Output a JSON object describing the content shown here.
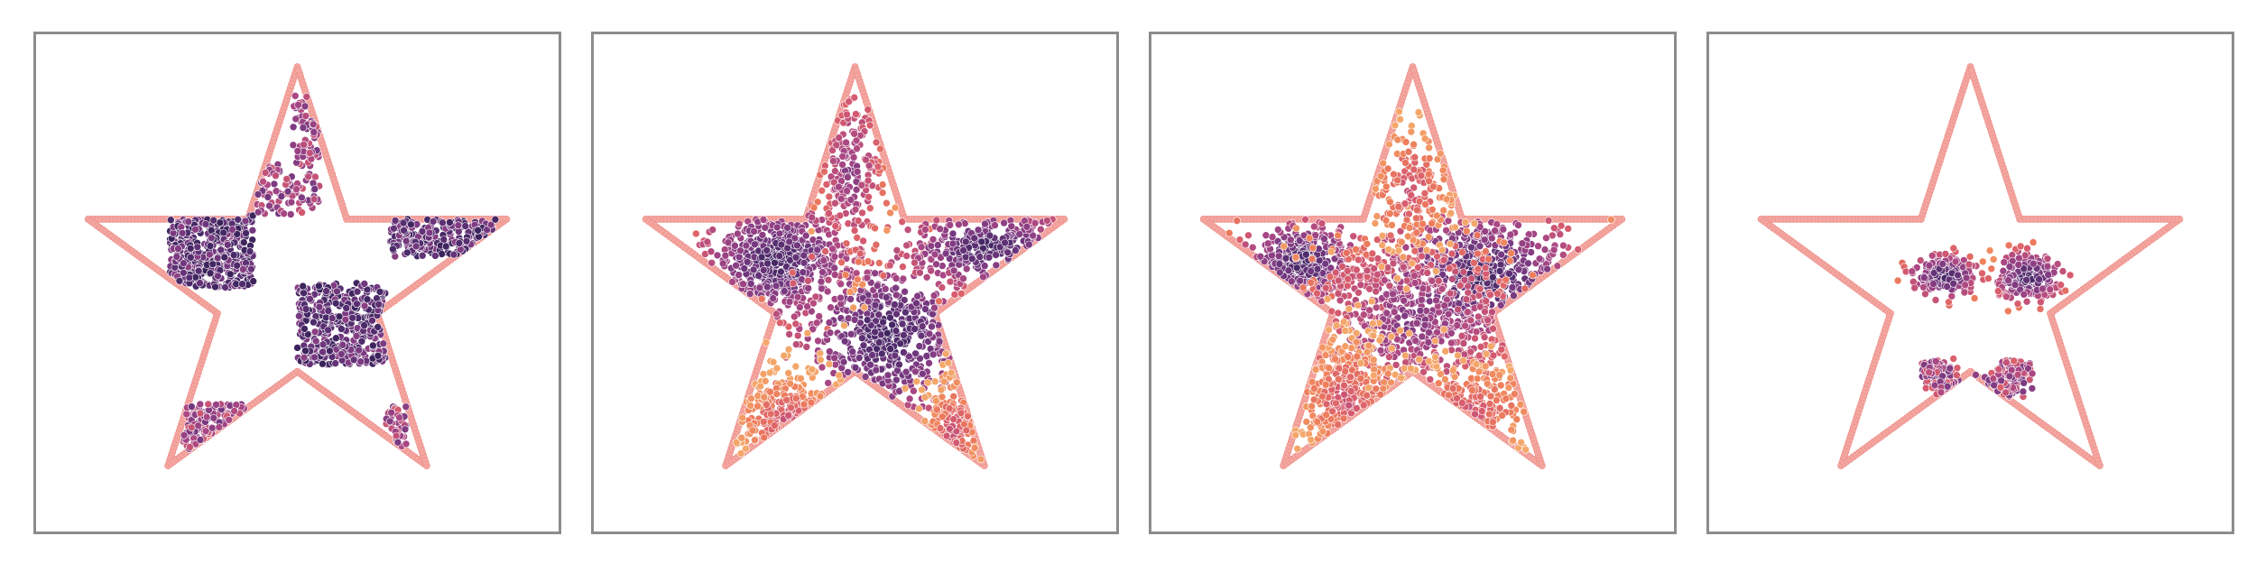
{
  "figure": {
    "boundary_color": "#f4a6a0",
    "colormap": [
      "#311f53",
      "#4d2b6b",
      "#7a3a82",
      "#a94784",
      "#d65b6f",
      "#ee7d5c",
      "#f4a76a"
    ]
  },
  "chart_data": [
    {
      "type": "scatter",
      "title": "",
      "xlim": [
        -1.2,
        1.2
      ],
      "ylim": [
        -1.12,
        1.16
      ],
      "grid": false,
      "boundary": {
        "shape": "star",
        "vertices": 5,
        "outer_radius": 1.0,
        "inner_radius": 0.382
      },
      "clusters": [
        {
          "x_range": [
            -0.58,
            -0.2
          ],
          "y_range": [
            0.0,
            0.33
          ],
          "count": 460,
          "density": "high"
        },
        {
          "x_range": [
            -0.2,
            0.1
          ],
          "y_range": [
            0.33,
            0.56
          ],
          "count": 90,
          "density": "medium"
        },
        {
          "x_range": [
            -0.02,
            0.1
          ],
          "y_range": [
            0.56,
            0.88
          ],
          "count": 70,
          "density": "medium"
        },
        {
          "x_range": [
            0.0,
            0.4
          ],
          "y_range": [
            -0.35,
            0.02
          ],
          "count": 420,
          "density": "high"
        },
        {
          "x_range": [
            0.42,
            0.92
          ],
          "y_range": [
            0.14,
            0.33
          ],
          "count": 220,
          "density": "high"
        },
        {
          "x_range": [
            -0.52,
            -0.18
          ],
          "y_range": [
            -0.75,
            -0.53
          ],
          "count": 130,
          "density": "medium"
        },
        {
          "x_range": [
            0.4,
            0.5
          ],
          "y_range": [
            -0.75,
            -0.53
          ],
          "count": 40,
          "density": "medium"
        }
      ]
    },
    {
      "type": "scatter",
      "title": "",
      "xlim": [
        -1.2,
        1.2
      ],
      "ylim": [
        -1.12,
        1.16
      ],
      "grid": false,
      "boundary": {
        "shape": "star",
        "vertices": 5,
        "outer_radius": 1.0,
        "inner_radius": 0.382
      },
      "clusters": [
        {
          "cx": -0.35,
          "cy": 0.12,
          "sx": 0.16,
          "sy": 0.12,
          "count": 520,
          "density": "high"
        },
        {
          "cx": 0.15,
          "cy": -0.22,
          "sx": 0.2,
          "sy": 0.18,
          "count": 520,
          "density": "high"
        },
        {
          "cx": 0.6,
          "cy": 0.18,
          "sx": 0.18,
          "sy": 0.08,
          "count": 260,
          "density": "high"
        },
        {
          "cx": -0.02,
          "cy": 0.52,
          "sx": 0.08,
          "sy": 0.22,
          "count": 200,
          "density": "medium"
        },
        {
          "cx": -0.3,
          "cy": -0.6,
          "sx": 0.15,
          "sy": 0.12,
          "count": 200,
          "density": "low"
        },
        {
          "cx": 0.45,
          "cy": -0.65,
          "sx": 0.08,
          "sy": 0.15,
          "count": 140,
          "density": "low"
        }
      ]
    },
    {
      "type": "scatter",
      "title": "",
      "xlim": [
        -1.2,
        1.2
      ],
      "ylim": [
        -1.12,
        1.16
      ],
      "grid": false,
      "boundary": {
        "shape": "star",
        "vertices": 5,
        "outer_radius": 1.0,
        "inner_radius": 0.382
      },
      "clusters": [
        {
          "cx": -0.5,
          "cy": 0.12,
          "sx": 0.12,
          "sy": 0.09,
          "count": 380,
          "density": "high"
        },
        {
          "cx": 0.3,
          "cy": 0.05,
          "sx": 0.22,
          "sy": 0.14,
          "count": 520,
          "density": "high"
        },
        {
          "cx": 0.0,
          "cy": -0.15,
          "sx": 0.3,
          "sy": 0.2,
          "count": 560,
          "density": "medium"
        },
        {
          "cx": -0.3,
          "cy": -0.5,
          "sx": 0.14,
          "sy": 0.16,
          "count": 300,
          "density": "low"
        },
        {
          "cx": 0.0,
          "cy": 0.45,
          "sx": 0.12,
          "sy": 0.18,
          "count": 180,
          "density": "low"
        },
        {
          "cx": 0.25,
          "cy": -0.55,
          "sx": 0.18,
          "sy": 0.12,
          "count": 160,
          "density": "low"
        }
      ]
    },
    {
      "type": "scatter",
      "title": "",
      "xlim": [
        -1.2,
        1.2
      ],
      "ylim": [
        -1.12,
        1.16
      ],
      "grid": false,
      "boundary": {
        "shape": "star",
        "vertices": 5,
        "outer_radius": 1.0,
        "inner_radius": 0.382
      },
      "clusters": [
        {
          "shape": "gaussian",
          "cx": -0.12,
          "cy": 0.05,
          "sx": 0.07,
          "sy": 0.045,
          "count": 230,
          "density": "high"
        },
        {
          "shape": "gaussian",
          "cx": 0.26,
          "cy": 0.05,
          "sx": 0.07,
          "sy": 0.05,
          "count": 270,
          "density": "high"
        },
        {
          "shape": "arc",
          "cx": 0.03,
          "cy": -0.3,
          "r": 0.2,
          "start_deg": -10,
          "end_deg": -170,
          "width": 0.035,
          "count": 320,
          "density": "medium"
        }
      ]
    }
  ]
}
